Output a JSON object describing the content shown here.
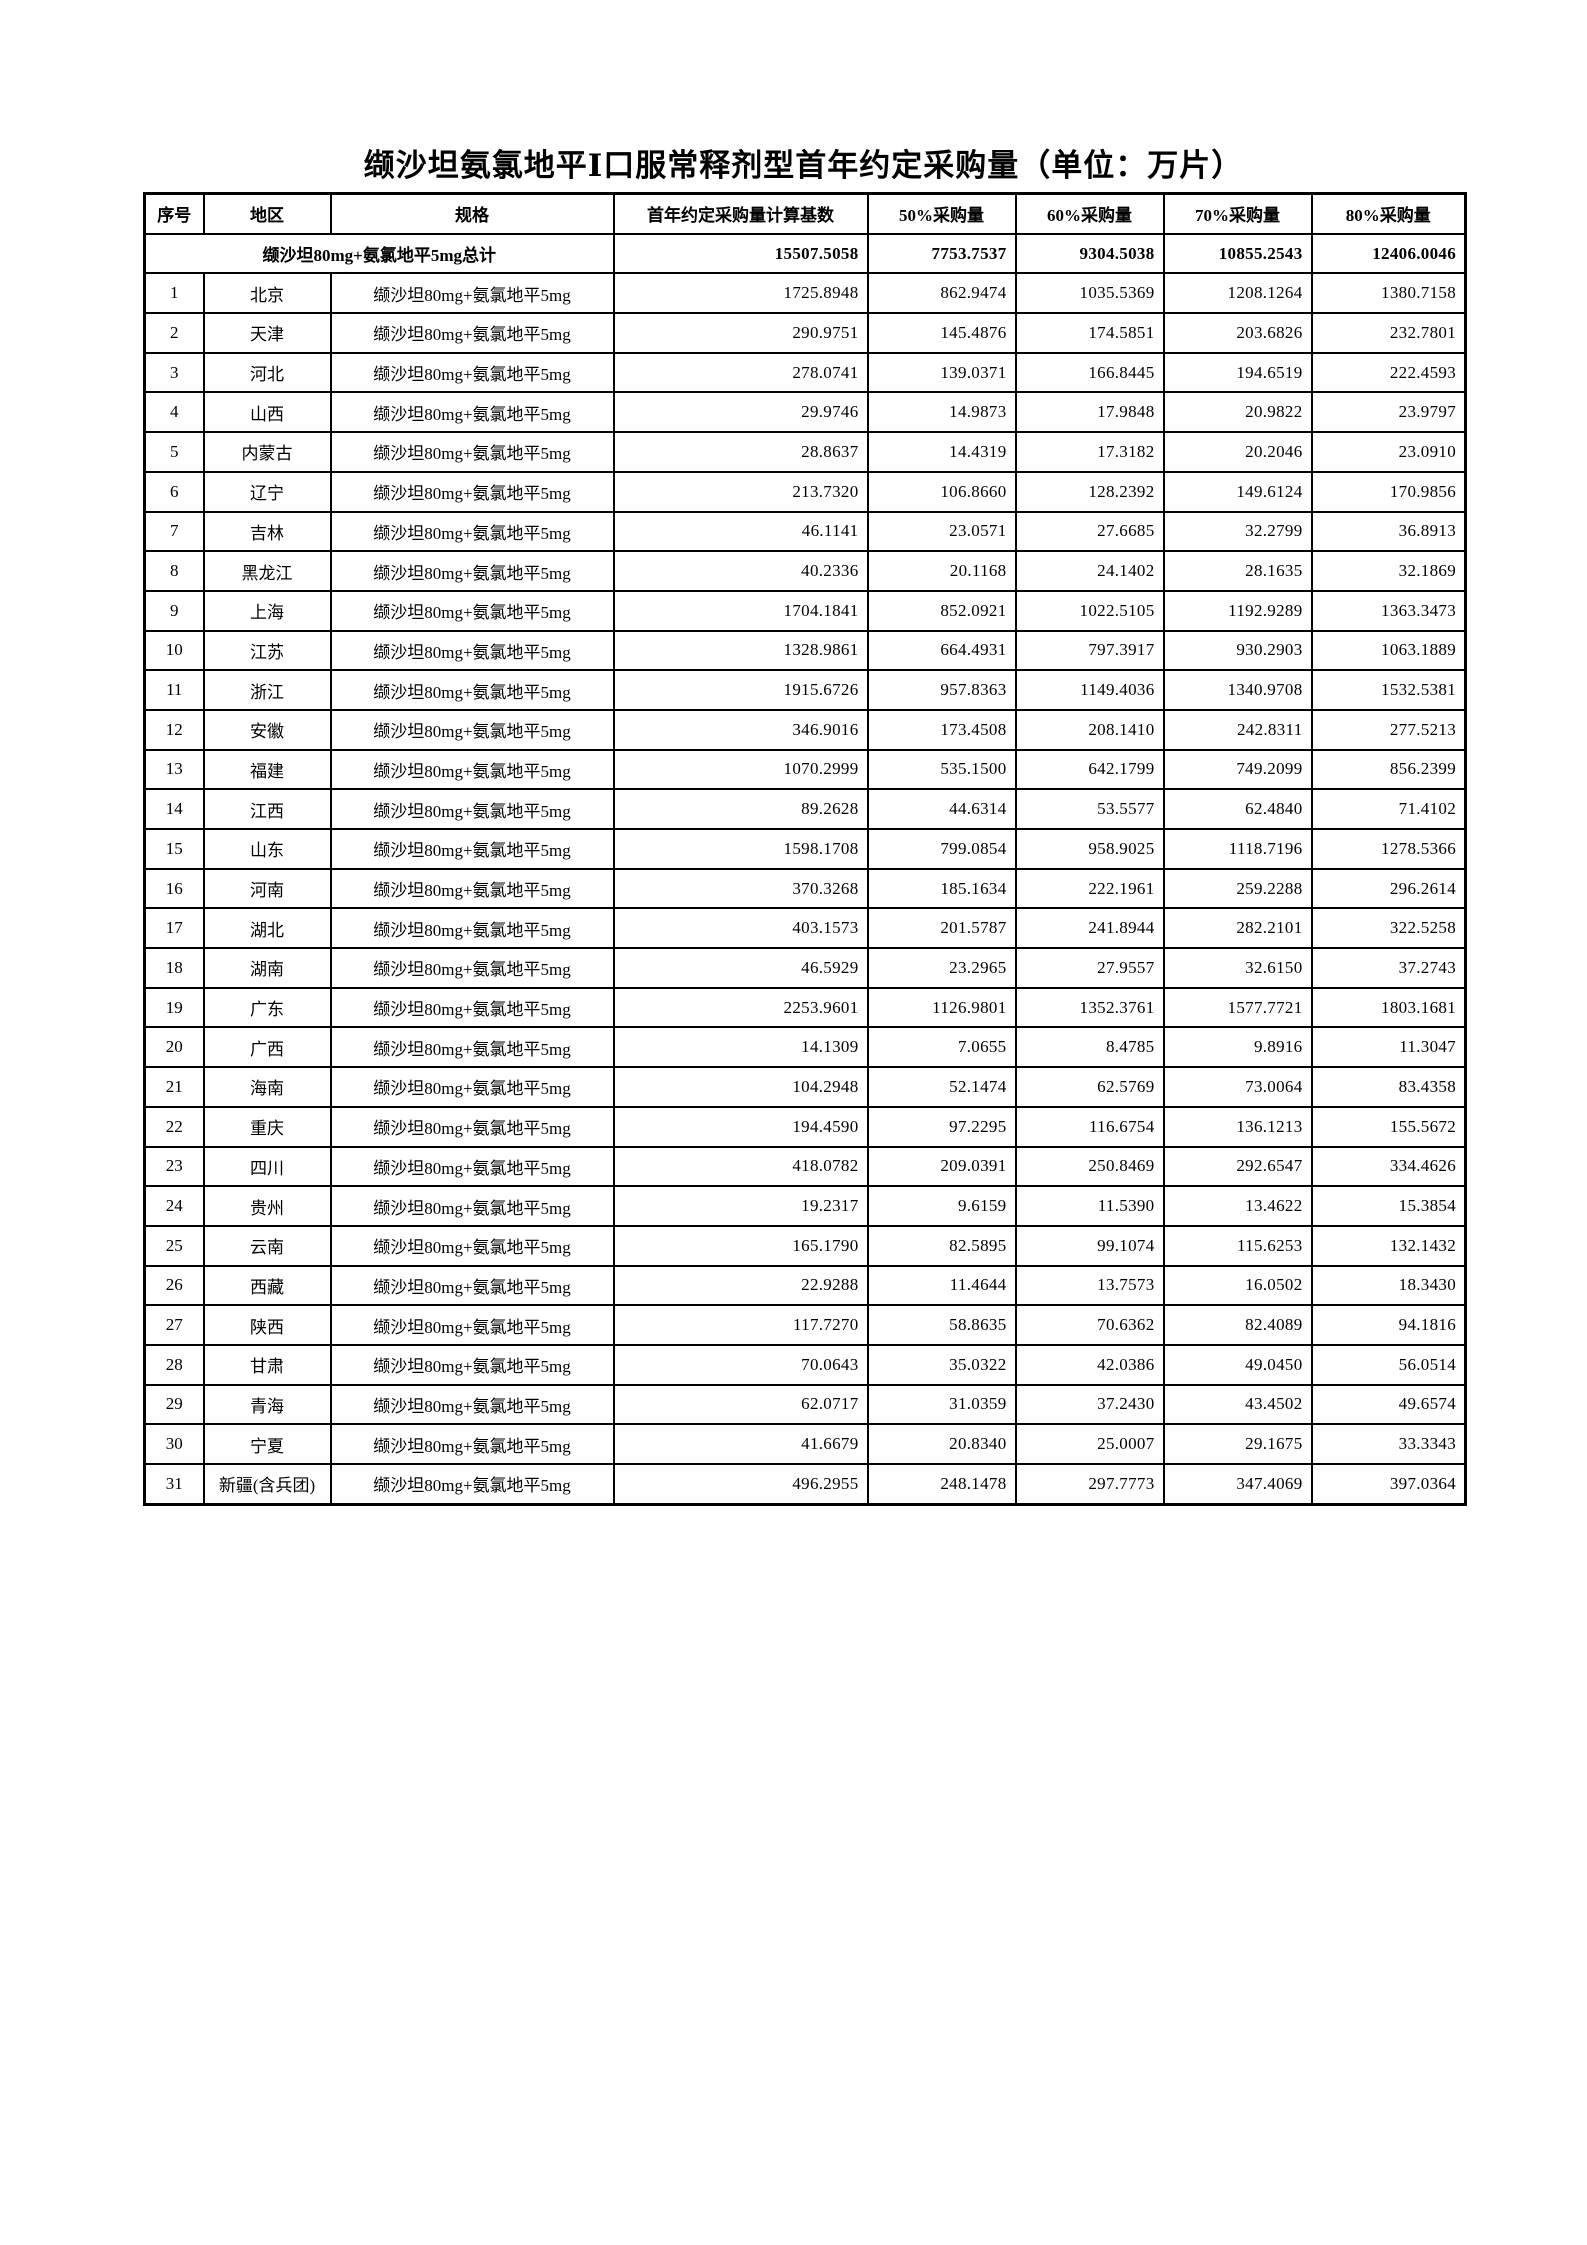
{
  "page": {
    "title": "缬沙坦氨氯地平Ⅰ口服常释剂型首年约定采购量（单位：万片）"
  },
  "table": {
    "columns": [
      "序号",
      "地区",
      "规格",
      "首年约定采购量计算基数",
      "50%采购量",
      "60%采购量",
      "70%采购量",
      "80%采购量"
    ],
    "total_row": {
      "label": "缬沙坦80mg+氨氯地平5mg总计",
      "values": [
        "15507.5058",
        "7753.7537",
        "9304.5038",
        "10855.2543",
        "12406.0046"
      ]
    },
    "spec": "缬沙坦80mg+氨氯地平5mg",
    "rows": [
      {
        "no": "1",
        "region": "北京",
        "spec": "缬沙坦80mg+氨氯地平5mg",
        "values": [
          "1725.8948",
          "862.9474",
          "1035.5369",
          "1208.1264",
          "1380.7158"
        ]
      },
      {
        "no": "2",
        "region": "天津",
        "spec": "缬沙坦80mg+氨氯地平5mg",
        "values": [
          "290.9751",
          "145.4876",
          "174.5851",
          "203.6826",
          "232.7801"
        ]
      },
      {
        "no": "3",
        "region": "河北",
        "spec": "缬沙坦80mg+氨氯地平5mg",
        "values": [
          "278.0741",
          "139.0371",
          "166.8445",
          "194.6519",
          "222.4593"
        ]
      },
      {
        "no": "4",
        "region": "山西",
        "spec": "缬沙坦80mg+氨氯地平5mg",
        "values": [
          "29.9746",
          "14.9873",
          "17.9848",
          "20.9822",
          "23.9797"
        ]
      },
      {
        "no": "5",
        "region": "内蒙古",
        "spec": "缬沙坦80mg+氨氯地平5mg",
        "values": [
          "28.8637",
          "14.4319",
          "17.3182",
          "20.2046",
          "23.0910"
        ]
      },
      {
        "no": "6",
        "region": "辽宁",
        "spec": "缬沙坦80mg+氨氯地平5mg",
        "values": [
          "213.7320",
          "106.8660",
          "128.2392",
          "149.6124",
          "170.9856"
        ]
      },
      {
        "no": "7",
        "region": "吉林",
        "spec": "缬沙坦80mg+氨氯地平5mg",
        "values": [
          "46.1141",
          "23.0571",
          "27.6685",
          "32.2799",
          "36.8913"
        ]
      },
      {
        "no": "8",
        "region": "黑龙江",
        "spec": "缬沙坦80mg+氨氯地平5mg",
        "values": [
          "40.2336",
          "20.1168",
          "24.1402",
          "28.1635",
          "32.1869"
        ]
      },
      {
        "no": "9",
        "region": "上海",
        "spec": "缬沙坦80mg+氨氯地平5mg",
        "values": [
          "1704.1841",
          "852.0921",
          "1022.5105",
          "1192.9289",
          "1363.3473"
        ]
      },
      {
        "no": "10",
        "region": "江苏",
        "spec": "缬沙坦80mg+氨氯地平5mg",
        "values": [
          "1328.9861",
          "664.4931",
          "797.3917",
          "930.2903",
          "1063.1889"
        ]
      },
      {
        "no": "11",
        "region": "浙江",
        "spec": "缬沙坦80mg+氨氯地平5mg",
        "values": [
          "1915.6726",
          "957.8363",
          "1149.4036",
          "1340.9708",
          "1532.5381"
        ]
      },
      {
        "no": "12",
        "region": "安徽",
        "spec": "缬沙坦80mg+氨氯地平5mg",
        "values": [
          "346.9016",
          "173.4508",
          "208.1410",
          "242.8311",
          "277.5213"
        ]
      },
      {
        "no": "13",
        "region": "福建",
        "spec": "缬沙坦80mg+氨氯地平5mg",
        "values": [
          "1070.2999",
          "535.1500",
          "642.1799",
          "749.2099",
          "856.2399"
        ]
      },
      {
        "no": "14",
        "region": "江西",
        "spec": "缬沙坦80mg+氨氯地平5mg",
        "values": [
          "89.2628",
          "44.6314",
          "53.5577",
          "62.4840",
          "71.4102"
        ]
      },
      {
        "no": "15",
        "region": "山东",
        "spec": "缬沙坦80mg+氨氯地平5mg",
        "values": [
          "1598.1708",
          "799.0854",
          "958.9025",
          "1118.7196",
          "1278.5366"
        ]
      },
      {
        "no": "16",
        "region": "河南",
        "spec": "缬沙坦80mg+氨氯地平5mg",
        "values": [
          "370.3268",
          "185.1634",
          "222.1961",
          "259.2288",
          "296.2614"
        ]
      },
      {
        "no": "17",
        "region": "湖北",
        "spec": "缬沙坦80mg+氨氯地平5mg",
        "values": [
          "403.1573",
          "201.5787",
          "241.8944",
          "282.2101",
          "322.5258"
        ]
      },
      {
        "no": "18",
        "region": "湖南",
        "spec": "缬沙坦80mg+氨氯地平5mg",
        "values": [
          "46.5929",
          "23.2965",
          "27.9557",
          "32.6150",
          "37.2743"
        ]
      },
      {
        "no": "19",
        "region": "广东",
        "spec": "缬沙坦80mg+氨氯地平5mg",
        "values": [
          "2253.9601",
          "1126.9801",
          "1352.3761",
          "1577.7721",
          "1803.1681"
        ]
      },
      {
        "no": "20",
        "region": "广西",
        "spec": "缬沙坦80mg+氨氯地平5mg",
        "values": [
          "14.1309",
          "7.0655",
          "8.4785",
          "9.8916",
          "11.3047"
        ]
      },
      {
        "no": "21",
        "region": "海南",
        "spec": "缬沙坦80mg+氨氯地平5mg",
        "values": [
          "104.2948",
          "52.1474",
          "62.5769",
          "73.0064",
          "83.4358"
        ]
      },
      {
        "no": "22",
        "region": "重庆",
        "spec": "缬沙坦80mg+氨氯地平5mg",
        "values": [
          "194.4590",
          "97.2295",
          "116.6754",
          "136.1213",
          "155.5672"
        ]
      },
      {
        "no": "23",
        "region": "四川",
        "spec": "缬沙坦80mg+氨氯地平5mg",
        "values": [
          "418.0782",
          "209.0391",
          "250.8469",
          "292.6547",
          "334.4626"
        ]
      },
      {
        "no": "24",
        "region": "贵州",
        "spec": "缬沙坦80mg+氨氯地平5mg",
        "values": [
          "19.2317",
          "9.6159",
          "11.5390",
          "13.4622",
          "15.3854"
        ]
      },
      {
        "no": "25",
        "region": "云南",
        "spec": "缬沙坦80mg+氨氯地平5mg",
        "values": [
          "165.1790",
          "82.5895",
          "99.1074",
          "115.6253",
          "132.1432"
        ]
      },
      {
        "no": "26",
        "region": "西藏",
        "spec": "缬沙坦80mg+氨氯地平5mg",
        "values": [
          "22.9288",
          "11.4644",
          "13.7573",
          "16.0502",
          "18.3430"
        ]
      },
      {
        "no": "27",
        "region": "陕西",
        "spec": "缬沙坦80mg+氨氯地平5mg",
        "values": [
          "117.7270",
          "58.8635",
          "70.6362",
          "82.4089",
          "94.1816"
        ]
      },
      {
        "no": "28",
        "region": "甘肃",
        "spec": "缬沙坦80mg+氨氯地平5mg",
        "values": [
          "70.0643",
          "35.0322",
          "42.0386",
          "49.0450",
          "56.0514"
        ]
      },
      {
        "no": "29",
        "region": "青海",
        "spec": "缬沙坦80mg+氨氯地平5mg",
        "values": [
          "62.0717",
          "31.0359",
          "37.2430",
          "43.4502",
          "49.6574"
        ]
      },
      {
        "no": "30",
        "region": "宁夏",
        "spec": "缬沙坦80mg+氨氯地平5mg",
        "values": [
          "41.6679",
          "20.8340",
          "25.0007",
          "29.1675",
          "33.3343"
        ]
      },
      {
        "no": "31",
        "region": "新疆(含兵团)",
        "spec": "缬沙坦80mg+氨氯地平5mg",
        "values": [
          "496.2955",
          "248.1478",
          "297.7773",
          "347.4069",
          "397.0364"
        ]
      }
    ]
  }
}
